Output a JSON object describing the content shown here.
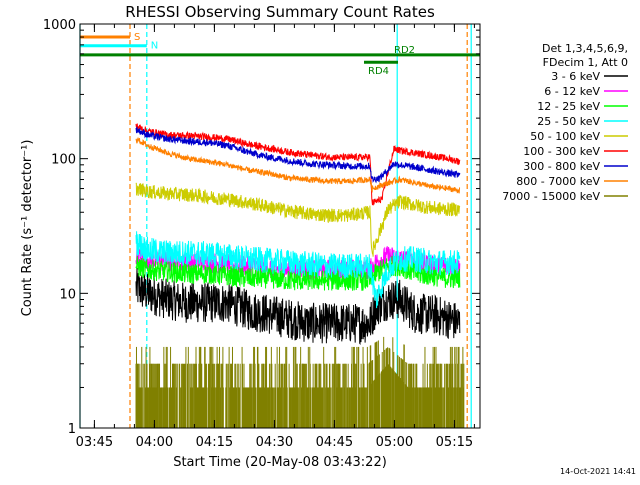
{
  "chart_data": {
    "type": "line",
    "title": "RHESSI Observing Summary Count Rates",
    "xlabel": "Start Time (20-May-08 03:43:22)",
    "ylabel": "Count Rate (s⁻¹ detector⁻¹)",
    "yscale": "log",
    "ylim": [
      1,
      1000
    ],
    "xlim_minutes_after_start": [
      -2,
      98
    ],
    "x_ticks": [
      {
        "label": "03:45",
        "minute": 1.6
      },
      {
        "label": "04:00",
        "minute": 16.6
      },
      {
        "label": "04:15",
        "minute": 31.6
      },
      {
        "label": "04:30",
        "minute": 46.6
      },
      {
        "label": "04:45",
        "minute": 61.6
      },
      {
        "label": "05:00",
        "minute": 76.6
      },
      {
        "label": "05:15",
        "minute": 91.6
      }
    ],
    "y_ticks": [
      {
        "label": "1",
        "value": 1
      },
      {
        "label": "10",
        "value": 10
      },
      {
        "label": "100",
        "value": 100
      },
      {
        "label": "1000",
        "value": 1000
      }
    ],
    "legend_header": [
      "Det 1,3,4,5,6,9,",
      "FDecim 1, Att 0"
    ],
    "legend_placement": "right",
    "series": [
      {
        "name": "3 - 6 keV",
        "color": "#000000",
        "x": [
          12,
          15,
          20,
          25,
          30,
          35,
          40,
          45,
          50,
          55,
          58,
          62,
          66,
          70.5,
          72,
          75,
          78,
          82,
          86,
          90,
          93
        ],
        "y": [
          11,
          10,
          9,
          8.5,
          8.5,
          8.5,
          7.5,
          7,
          6.5,
          6,
          6,
          6,
          6,
          6,
          8,
          9,
          9,
          7,
          7,
          6.5,
          6
        ]
      },
      {
        "name": "6 - 12 keV",
        "color": "#ff00ff",
        "x": [
          12,
          15,
          20,
          25,
          30,
          35,
          40,
          45,
          50,
          55,
          60,
          65,
          70.5,
          72,
          75,
          78,
          82,
          86,
          90,
          93
        ],
        "y": [
          19,
          18,
          17,
          17,
          17,
          16.5,
          16,
          15.5,
          15,
          15,
          15,
          15,
          15,
          17,
          19,
          18,
          17,
          16,
          16,
          16
        ]
      },
      {
        "name": "12 - 25 keV",
        "color": "#00ff00",
        "x": [
          12,
          15,
          20,
          25,
          30,
          35,
          40,
          45,
          50,
          55,
          60,
          65,
          70.5,
          72,
          75,
          78,
          82,
          86,
          90,
          93
        ],
        "y": [
          16,
          15,
          14.5,
          14,
          14,
          13.5,
          13,
          13,
          12.5,
          12.5,
          12.5,
          12.5,
          12.5,
          14,
          16,
          16,
          14,
          13.5,
          13,
          13
        ]
      },
      {
        "name": "25 - 50 keV",
        "color": "#00ffff",
        "x": [
          12,
          15,
          20,
          25,
          30,
          35,
          40,
          45,
          50,
          55,
          60,
          65,
          70.5,
          72,
          75,
          78,
          82,
          86,
          90,
          93
        ],
        "y": [
          24,
          21,
          20,
          20,
          19.5,
          19,
          18,
          17.5,
          17,
          16.5,
          16,
          16,
          16,
          9,
          15,
          18,
          18,
          17,
          17,
          17
        ]
      },
      {
        "name": "50 - 100 keV",
        "color": "#cccc00",
        "x": [
          12,
          15,
          20,
          25,
          30,
          35,
          40,
          45,
          50,
          55,
          60,
          65,
          70.5,
          71,
          75,
          78,
          82,
          86,
          90,
          93
        ],
        "y": [
          60,
          57,
          55,
          54,
          52,
          50,
          47,
          44,
          41,
          39,
          38,
          38,
          40,
          20,
          42,
          48,
          45,
          43,
          42,
          42
        ]
      },
      {
        "name": "100 - 300 keV",
        "color": "#ff0000",
        "x": [
          12,
          15,
          20,
          25,
          30,
          35,
          40,
          45,
          50,
          55,
          60,
          65,
          70.5,
          71,
          73.5,
          75,
          76.5,
          78,
          82,
          86,
          90,
          93
        ],
        "y": [
          175,
          160,
          150,
          148,
          145,
          140,
          128,
          120,
          112,
          107,
          103,
          102,
          103,
          47,
          50,
          80,
          118,
          115,
          110,
          105,
          100,
          95
        ]
      },
      {
        "name": "300 - 800 keV",
        "color": "#0000cc",
        "x": [
          12,
          15,
          20,
          25,
          30,
          35,
          40,
          45,
          50,
          55,
          60,
          65,
          70.5,
          71,
          73,
          76.5,
          78,
          82,
          86,
          90,
          93
        ],
        "y": [
          165,
          150,
          140,
          135,
          132,
          125,
          112,
          103,
          97,
          92,
          90,
          88,
          88,
          70,
          72,
          92,
          90,
          86,
          82,
          78,
          75
        ]
      },
      {
        "name": "800 - 7000 keV",
        "color": "#ff8000",
        "x": [
          12,
          15,
          20,
          25,
          30,
          35,
          40,
          45,
          50,
          55,
          60,
          65,
          70.5,
          71,
          75,
          78,
          82,
          86,
          90,
          93
        ],
        "y": [
          140,
          125,
          110,
          100,
          95,
          90,
          82,
          78,
          72,
          70,
          68,
          68,
          70,
          60,
          66,
          70,
          66,
          62,
          60,
          58
        ]
      },
      {
        "name": "7000 - 15000 keV",
        "color": "#808000",
        "x": [
          12,
          20,
          30,
          40,
          50,
          60,
          70,
          75,
          80,
          85,
          90,
          94
        ],
        "y": [
          2,
          2,
          2,
          2,
          2,
          2,
          2,
          3,
          2,
          2,
          2,
          2
        ]
      }
    ],
    "annotations": [
      {
        "label": "S",
        "color": "#ff8000",
        "x_start": -2,
        "x_end": 10.5,
        "y_value": 800
      },
      {
        "label": "N",
        "color": "#00ffff",
        "x_start": -2,
        "x_end": 14.7,
        "y_value": 690
      },
      {
        "label": "RD2",
        "color": "#008000",
        "x_start": -2,
        "x_end": 98,
        "y_value": 590
      },
      {
        "label": "RD4",
        "color": "#008000",
        "x_start": 69,
        "x_end": 77.5,
        "y_value": 520
      }
    ],
    "vertical_markers": [
      {
        "color": "#00ffff",
        "x": -2
      },
      {
        "color": "#ff8000",
        "x": 10.5
      },
      {
        "color": "#00ffff",
        "x": 14.7
      },
      {
        "color": "#00ffff",
        "x": 77.3
      },
      {
        "color": "#ff8000",
        "x": 94.8
      },
      {
        "color": "#00ffff",
        "x": 95.8
      }
    ],
    "grid": false
  },
  "footer": {
    "timestamp": "14-Oct-2021 14:41"
  }
}
